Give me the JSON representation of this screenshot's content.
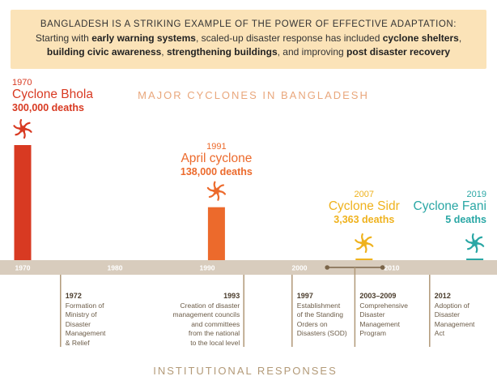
{
  "banner": {
    "headline": "BANGLADESH IS A STRIKING EXAMPLE OF THE POWER OF EFFECTIVE ADAPTATION:",
    "line1_a": "Starting with ",
    "line1_b": "early warning systems",
    "line1_c": ", scaled-up disaster response has included ",
    "line1_d": "cyclone shelters",
    "line1_e": ",",
    "line2_a": "building civic awareness",
    "line2_b": ", ",
    "line2_c": "strengthening buildings",
    "line2_d": ", and improving ",
    "line2_e": "post disaster recovery"
  },
  "chart_data": {
    "type": "bar",
    "title": "MAJOR CYCLONES IN BANGLADESH",
    "x_axis": {
      "range": [
        1970,
        2019
      ],
      "ticks": [
        "1970",
        "1980",
        "1990",
        "2000",
        "2010"
      ]
    },
    "series": [
      {
        "name": "Cyclone Bhola",
        "year": "1970",
        "deaths": 300000,
        "deaths_label": "300,000 deaths",
        "color": "#d83a22"
      },
      {
        "name": "April cyclone",
        "year": "1991",
        "deaths": 138000,
        "deaths_label": "138,000 deaths",
        "color": "#ec6a2c"
      },
      {
        "name": "Cyclone Sidr",
        "year": "2007",
        "deaths": 3363,
        "deaths_label": "3,363 deaths",
        "color": "#efb21d"
      },
      {
        "name": "Cyclone Fani",
        "year": "2019",
        "deaths": 5,
        "deaths_label": "5 deaths",
        "color": "#2aa7a5"
      }
    ],
    "responses_title": "INSTITUTIONAL RESPONSES",
    "responses": [
      {
        "year": "1972",
        "text": [
          "Formation of",
          "Ministry of",
          "Disaster",
          "Management",
          "& Relief"
        ]
      },
      {
        "year": "1993",
        "text": [
          "Creation of disaster",
          "management councils",
          "and committees",
          "from the national",
          "to the local level"
        ]
      },
      {
        "year": "1997",
        "text": [
          "Establishment",
          "of the Standing",
          "Orders on",
          "Disasters (SOD)"
        ]
      },
      {
        "year": "2003–2009",
        "text": [
          "Comprehensive",
          "Disaster",
          "Management",
          "Program"
        ]
      },
      {
        "year": "2012",
        "text": [
          "Adoption of",
          "Disaster",
          "Management",
          "Act"
        ]
      }
    ],
    "colors": {
      "axis_band": "#d8ccbd",
      "response_line": "#b09878"
    }
  }
}
